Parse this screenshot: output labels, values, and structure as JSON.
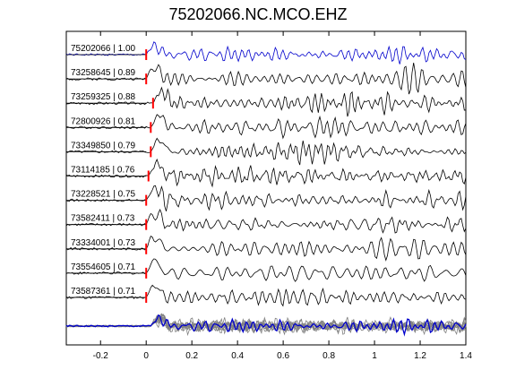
{
  "chart_data": {
    "type": "line",
    "title": "75202066.NC.MCO.EHZ",
    "xlabel": "",
    "ylabel": "",
    "xlim": [
      -0.35,
      1.4
    ],
    "xticks": [
      -0.2,
      0,
      0.2,
      0.4,
      0.6,
      0.8,
      1,
      1.2,
      1.4
    ],
    "xtick_labels": [
      "-0.2",
      "0",
      "0.2",
      "0.4",
      "0.6",
      "0.8",
      "1",
      "1.2",
      "1.4"
    ],
    "grid": false,
    "pick_time": 0,
    "series": [
      {
        "name": "75202066 | 1.00",
        "pick_offset": 0.0,
        "seed": 1
      },
      {
        "name": "73258645 | 0.89",
        "pick_offset": 0.0,
        "seed": 2
      },
      {
        "name": "73259325 | 0.88",
        "pick_offset": 0.03,
        "seed": 3
      },
      {
        "name": "72800926 | 0.81",
        "pick_offset": 0.02,
        "seed": 4
      },
      {
        "name": "73349850 | 0.79",
        "pick_offset": 0.02,
        "seed": 5
      },
      {
        "name": "73114185 | 0.76",
        "pick_offset": 0.01,
        "seed": 6
      },
      {
        "name": "73228521 | 0.75",
        "pick_offset": 0.0,
        "seed": 7
      },
      {
        "name": "73582411 | 0.73",
        "pick_offset": 0.0,
        "seed": 8
      },
      {
        "name": "73334001 | 0.73",
        "pick_offset": 0.0,
        "seed": 9
      },
      {
        "name": "73554605 | 0.71",
        "pick_offset": 0.0,
        "seed": 10
      },
      {
        "name": "73587361 | 0.71",
        "pick_offset": 0.0,
        "seed": 11
      }
    ],
    "colors": {
      "reference": "#0000cc",
      "trace": "#000000",
      "pick": "#ff0000",
      "stack": "#808080"
    }
  }
}
